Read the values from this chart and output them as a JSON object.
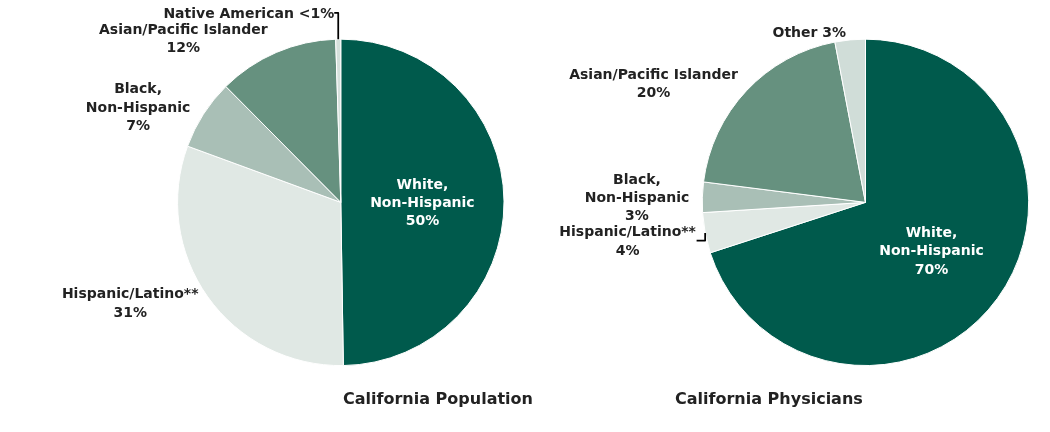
{
  "chart_data": [
    {
      "type": "pie",
      "title": "California Population",
      "categories": [
        "White, Non-Hispanic",
        "Hispanic/Latino**",
        "Black, Non-Hispanic",
        "Asian/Pacific Islander",
        "Native American"
      ],
      "values": [
        50,
        31,
        7,
        12,
        0.5
      ],
      "value_labels": [
        "50%",
        "31%",
        "7%",
        "12%",
        "<1%"
      ],
      "colors": [
        "#005a4c",
        "#e0e8e4",
        "#a9bfb6",
        "#66917f",
        "#d5e0db"
      ]
    },
    {
      "type": "pie",
      "title": "California Physicians",
      "categories": [
        "White, Non-Hispanic",
        "Hispanic/Latino**",
        "Black, Non-Hispanic",
        "Asian/Pacific Islander",
        "Other"
      ],
      "values": [
        70,
        4,
        3,
        20,
        3
      ],
      "value_labels": [
        "70%",
        "4%",
        "3%",
        "20%",
        "3%"
      ],
      "colors": [
        "#005a4c",
        "#e0e8e4",
        "#a9bfb6",
        "#66917f",
        "#d0ddd8"
      ]
    }
  ]
}
